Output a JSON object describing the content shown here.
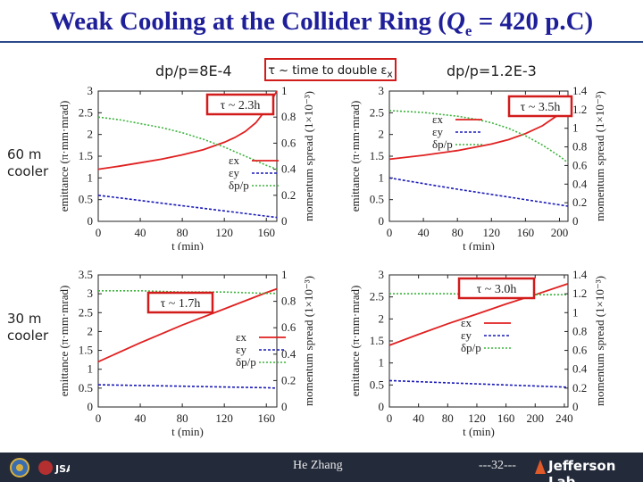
{
  "title": {
    "prefix": "Weak Cooling at the Collider Ring (",
    "q": "Q",
    "sub": "e",
    "suffix": " = 420 p.C)"
  },
  "labels": {
    "dp_left": "dp/p=8E-4",
    "dp_right": "dp/p=1.2E-3",
    "banner": "τ ~ time to double ε",
    "banner_sub": "x",
    "cooler_60": [
      "60 m",
      "cooler"
    ],
    "cooler_30": [
      "30 m",
      "cooler"
    ]
  },
  "footer": {
    "author": "He Zhang",
    "page": "---32---",
    "lab": "Jefferson Lab",
    "jsa": "JSA"
  },
  "colors": {
    "ex": "#e02020",
    "ey": "#1a1ab8",
    "dp": "#3cb43c",
    "box": "#d21b1b",
    "title": "#1f1f9a"
  },
  "chart_data": [
    {
      "id": "tl",
      "type": "line",
      "xlabel": "t (min)",
      "ylabel": "emittance (π·mm·mrad)",
      "y2label": "momentum spread (1×10⁻³)",
      "xlim": [
        0,
        170
      ],
      "ylim": [
        0,
        3
      ],
      "y2lim": [
        0,
        1
      ],
      "xticks": [
        0,
        40,
        80,
        120,
        160
      ],
      "yticks": [
        0,
        0.5,
        1,
        1.5,
        2,
        2.5,
        3
      ],
      "y2ticks": [
        0,
        0.2,
        0.4,
        0.6,
        0.8,
        1
      ],
      "annotation": "τ ~ 2.3h",
      "legend": [
        "εx",
        "εy",
        "δp/p"
      ],
      "series": [
        {
          "name": "εx",
          "axis": "y",
          "style": "ex",
          "x": [
            0,
            20,
            40,
            60,
            80,
            100,
            120,
            130,
            140,
            150,
            160,
            170
          ],
          "y": [
            1.2,
            1.27,
            1.35,
            1.43,
            1.53,
            1.65,
            1.82,
            1.93,
            2.07,
            2.27,
            2.58,
            3.0
          ]
        },
        {
          "name": "εy",
          "axis": "y",
          "style": "ey",
          "x": [
            0,
            40,
            80,
            120,
            160,
            170
          ],
          "y": [
            0.6,
            0.48,
            0.36,
            0.24,
            0.12,
            0.09
          ]
        },
        {
          "name": "δp/p",
          "axis": "y2",
          "style": "dp",
          "x": [
            0,
            20,
            40,
            60,
            80,
            100,
            120,
            140,
            160,
            170
          ],
          "y": [
            0.8,
            0.78,
            0.75,
            0.72,
            0.68,
            0.63,
            0.57,
            0.5,
            0.43,
            0.4
          ]
        }
      ]
    },
    {
      "id": "tr",
      "type": "line",
      "xlabel": "t (min)",
      "ylabel": "emittance (π·mm·mrad)",
      "y2label": "momentum spread (1×10⁻³)",
      "xlim": [
        0,
        210
      ],
      "ylim": [
        0,
        3
      ],
      "y2lim": [
        0,
        1.4
      ],
      "xticks": [
        0,
        40,
        80,
        120,
        160,
        200
      ],
      "yticks": [
        0,
        0.5,
        1,
        1.5,
        2,
        2.5,
        3
      ],
      "y2ticks": [
        0,
        0.2,
        0.4,
        0.6,
        0.8,
        1,
        1.2,
        1.4
      ],
      "annotation": "τ ~ 3.5h",
      "legend": [
        "εx",
        "εy",
        "δp/p"
      ],
      "series": [
        {
          "name": "εx",
          "axis": "y",
          "style": "ex",
          "x": [
            0,
            40,
            80,
            120,
            140,
            160,
            180,
            200,
            210
          ],
          "y": [
            1.43,
            1.52,
            1.63,
            1.78,
            1.88,
            2.02,
            2.2,
            2.47,
            2.65
          ]
        },
        {
          "name": "εy",
          "axis": "y",
          "style": "ey",
          "x": [
            0,
            40,
            80,
            120,
            160,
            200,
            210
          ],
          "y": [
            1.0,
            0.87,
            0.74,
            0.62,
            0.5,
            0.38,
            0.35
          ]
        },
        {
          "name": "δp/p",
          "axis": "y2",
          "style": "dp",
          "x": [
            0,
            40,
            80,
            100,
            120,
            140,
            160,
            180,
            200,
            210
          ],
          "y": [
            1.19,
            1.17,
            1.13,
            1.1,
            1.06,
            1.0,
            0.92,
            0.82,
            0.7,
            0.63
          ]
        }
      ]
    },
    {
      "id": "bl",
      "type": "line",
      "xlabel": "t (min)",
      "ylabel": "emittance (π·mm·mrad)",
      "y2label": "momentum spread (1×10⁻³)",
      "xlim": [
        0,
        170
      ],
      "ylim": [
        0,
        3.5
      ],
      "y2lim": [
        0,
        1
      ],
      "xticks": [
        0,
        40,
        80,
        120,
        160
      ],
      "yticks": [
        0,
        0.5,
        1,
        1.5,
        2,
        2.5,
        3,
        3.5
      ],
      "y2ticks": [
        0,
        0.2,
        0.4,
        0.6,
        0.8,
        1
      ],
      "annotation": "τ ~ 1.7h",
      "legend": [
        "εx",
        "εy",
        "δp/p"
      ],
      "series": [
        {
          "name": "εx",
          "axis": "y",
          "style": "ex",
          "x": [
            0,
            40,
            80,
            120,
            160,
            170
          ],
          "y": [
            1.2,
            1.7,
            2.17,
            2.6,
            3.03,
            3.13
          ]
        },
        {
          "name": "εy",
          "axis": "y",
          "style": "ey",
          "x": [
            0,
            40,
            80,
            120,
            160,
            170
          ],
          "y": [
            0.59,
            0.57,
            0.55,
            0.53,
            0.51,
            0.5
          ]
        },
        {
          "name": "δp/p",
          "axis": "y2",
          "style": "dp",
          "x": [
            0,
            40,
            80,
            120,
            160,
            170
          ],
          "y": [
            0.88,
            0.88,
            0.87,
            0.87,
            0.86,
            0.86
          ]
        }
      ]
    },
    {
      "id": "br",
      "type": "line",
      "xlabel": "t (min)",
      "ylabel": "emittance (π·mm·mrad)",
      "y2label": "momentum spread (1×10⁻³)",
      "xlim": [
        0,
        245
      ],
      "ylim": [
        0,
        3
      ],
      "y2lim": [
        0,
        1.4
      ],
      "xticks": [
        0,
        40,
        80,
        120,
        160,
        200,
        240
      ],
      "yticks": [
        0,
        0.5,
        1,
        1.5,
        2,
        2.5,
        3
      ],
      "y2ticks": [
        0,
        0.2,
        0.4,
        0.6,
        0.8,
        1,
        1.2,
        1.4
      ],
      "annotation": "τ ~ 3.0h",
      "legend": [
        "εx",
        "εy",
        "δp/p"
      ],
      "series": [
        {
          "name": "εx",
          "axis": "y",
          "style": "ex",
          "x": [
            0,
            40,
            80,
            120,
            160,
            200,
            245
          ],
          "y": [
            1.4,
            1.65,
            1.89,
            2.11,
            2.34,
            2.55,
            2.8
          ]
        },
        {
          "name": "εy",
          "axis": "y",
          "style": "ey",
          "x": [
            0,
            80,
            160,
            245
          ],
          "y": [
            0.6,
            0.55,
            0.5,
            0.45
          ]
        },
        {
          "name": "δp/p",
          "axis": "y2",
          "style": "dp",
          "x": [
            0,
            80,
            160,
            245
          ],
          "y": [
            1.2,
            1.2,
            1.19,
            1.19
          ]
        }
      ]
    }
  ]
}
